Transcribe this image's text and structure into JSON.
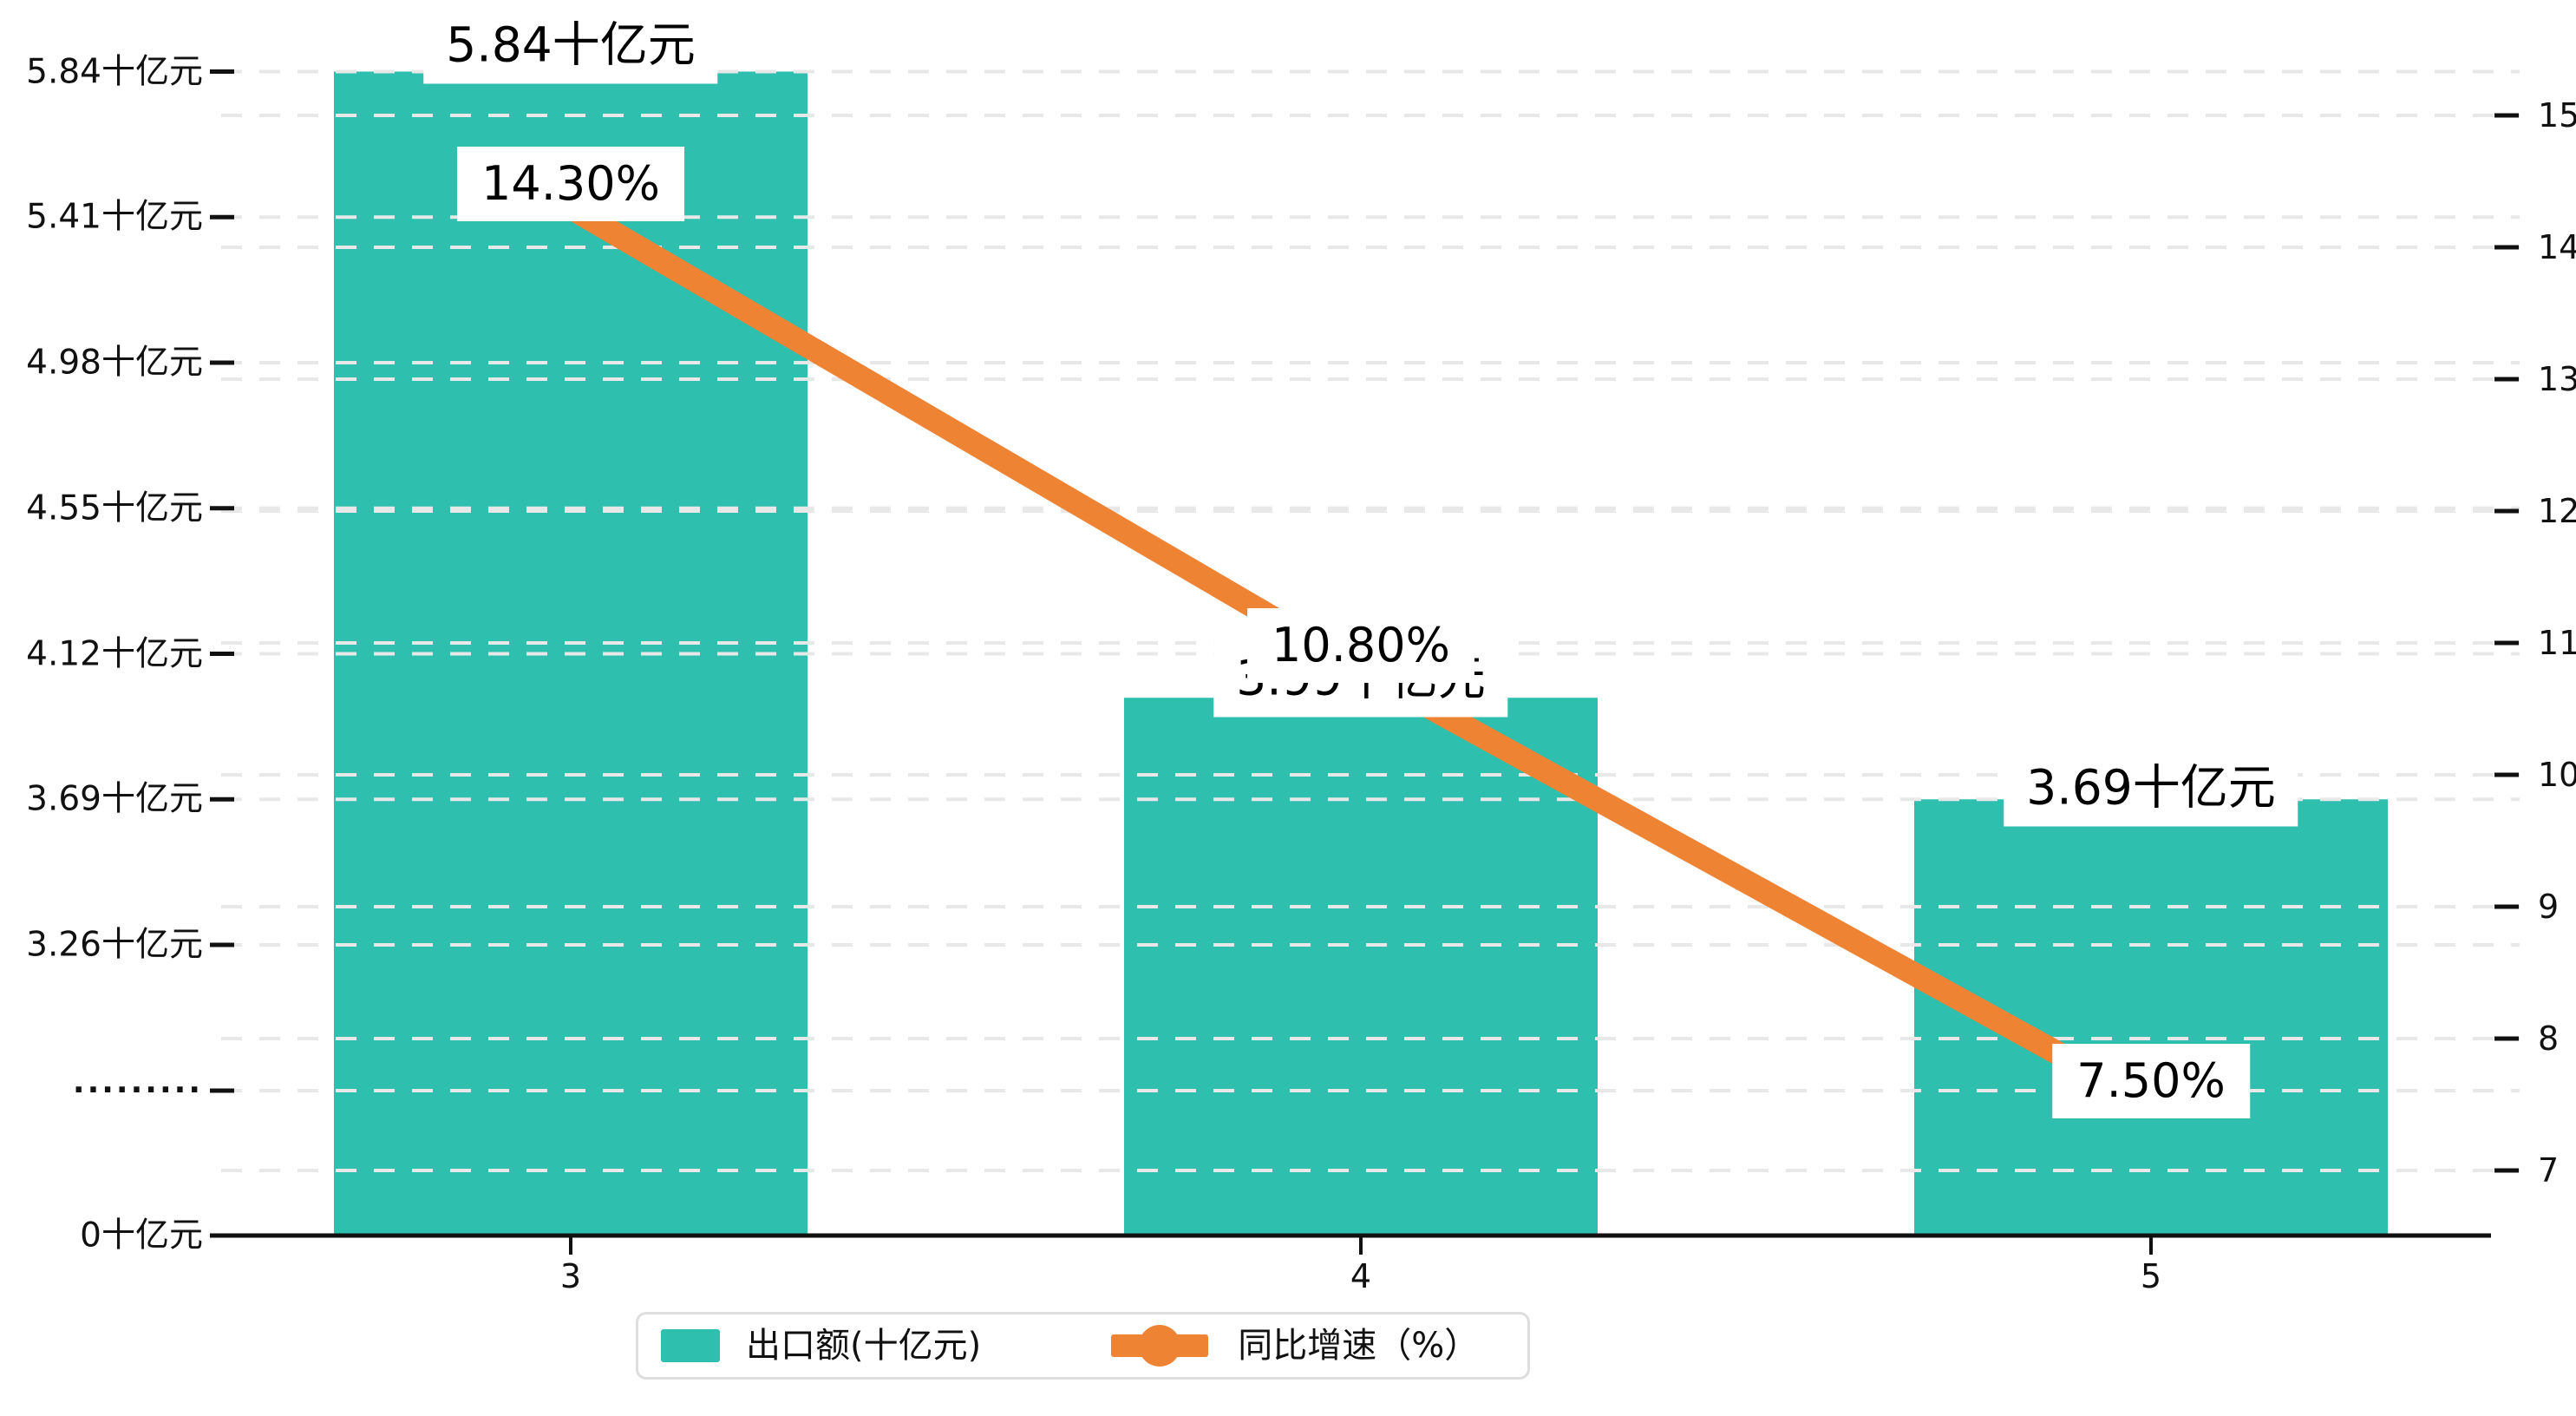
{
  "chart_data": {
    "type": "bar",
    "subtype": "bar+line combo, dual y-axis, broken left axis",
    "title": "",
    "categories": [
      "3",
      "4",
      "5"
    ],
    "series": [
      {
        "name": "出口额(十亿元)",
        "type": "bar",
        "axis": "left",
        "unit": "十亿元",
        "color": "#2fbfae",
        "values": [
          5.84,
          3.99,
          3.69
        ],
        "data_labels": [
          "5.84十亿元",
          "3.99十亿元",
          "3.69十亿元"
        ]
      },
      {
        "name": "同比增速（%）",
        "type": "line",
        "axis": "right",
        "unit": "%",
        "color": "#ef8334",
        "values": [
          14.3,
          10.8,
          7.5
        ],
        "data_labels": [
          "14.30%",
          "10.80%",
          "7.50%"
        ]
      }
    ],
    "left_axis": {
      "axis_break": true,
      "ticks": [
        {
          "label": "5.84十亿元",
          "value": 5.84
        },
        {
          "label": "5.41十亿元",
          "value": 5.41
        },
        {
          "label": "4.98十亿元",
          "value": 4.98
        },
        {
          "label": "4.55十亿元",
          "value": 4.55
        },
        {
          "label": "4.12十亿元",
          "value": 4.12
        },
        {
          "label": "3.69十亿元",
          "value": 3.69
        },
        {
          "label": "3.26十亿元",
          "value": 3.26
        },
        {
          "label": "·········",
          "value": null
        },
        {
          "label": "0十亿元",
          "value": 0
        }
      ]
    },
    "right_axis": {
      "min": 7,
      "max": 15,
      "ticks": [
        "15",
        "14",
        "13",
        "12",
        "11",
        "10",
        "9",
        "8",
        "7"
      ]
    },
    "x_axis": {
      "ticks": [
        "3",
        "4",
        "5"
      ]
    },
    "grid": "horizontal dashed gridlines from both axes",
    "legend_position": "bottom-center"
  },
  "legend": {
    "bar_label": "出口额(十亿元)",
    "line_label": "同比增速（%）"
  },
  "colors": {
    "bar": "#2fbfae",
    "line": "#ef8334",
    "grid": "#e8e8e8",
    "axis": "#111111",
    "label_bg": "#ffffff",
    "legend_border": "#dedede"
  }
}
